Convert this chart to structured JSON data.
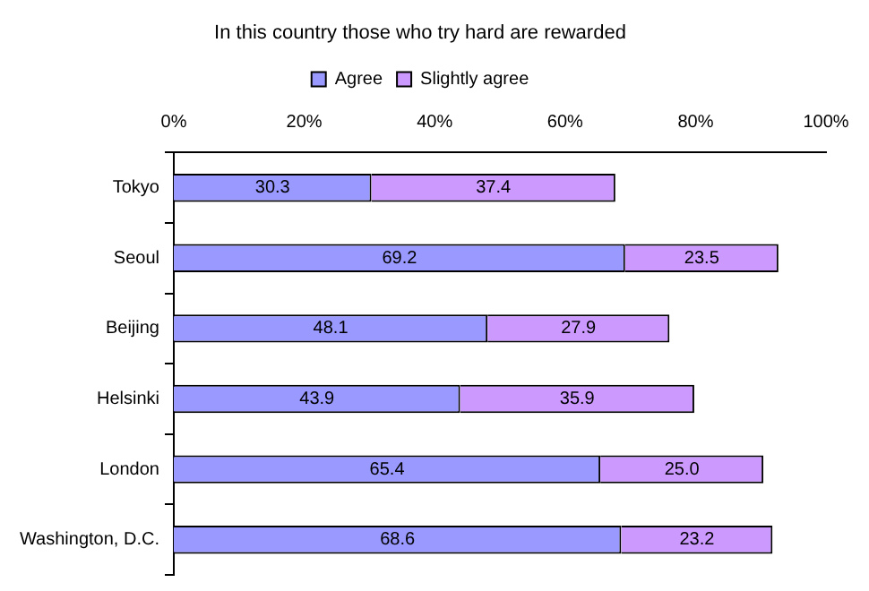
{
  "chart_data": {
    "type": "bar",
    "orientation": "horizontal",
    "stacked": true,
    "title": "In this country those who try hard are rewarded",
    "categories": [
      "Tokyo",
      "Seoul",
      "Beijing",
      "Helsinki",
      "London",
      "Washington, D.C."
    ],
    "series": [
      {
        "name": "Agree",
        "color": "#9999ff",
        "values": [
          30.3,
          69.2,
          48.1,
          43.9,
          65.4,
          68.6
        ],
        "value_labels": [
          "30.3",
          "69.2",
          "48.1",
          "43.9",
          "65.4",
          "68.6"
        ]
      },
      {
        "name": "Slightly agree",
        "color": "#cc99ff",
        "values": [
          37.4,
          23.5,
          27.9,
          35.9,
          25.0,
          23.2
        ],
        "value_labels": [
          "37.4",
          "23.5",
          "27.9",
          "35.9",
          "25.0",
          "23.2"
        ]
      }
    ],
    "xlim": [
      0,
      100
    ],
    "xticks": [
      {
        "value": 0,
        "label": "0%"
      },
      {
        "value": 20,
        "label": "20%"
      },
      {
        "value": 40,
        "label": "40%"
      },
      {
        "value": 60,
        "label": "60%"
      },
      {
        "value": 80,
        "label": "80%"
      },
      {
        "value": 100,
        "label": "100%"
      }
    ],
    "grid": false,
    "legend": "top"
  }
}
